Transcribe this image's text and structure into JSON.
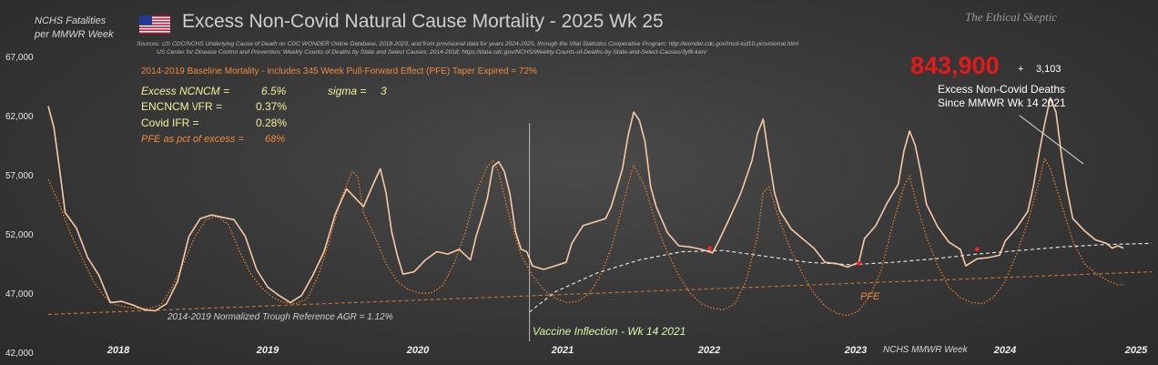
{
  "header": {
    "y_axis_title": [
      "NCHS Fatalities",
      "per MMWR Week"
    ],
    "title": "Excess Non-Covid Natural Cause Mortality - 2025 Wk 25",
    "watermark": "The Ethical Skeptic",
    "flag_icon": "us-flag-icon",
    "sources": [
      "Sources:  US CDC/NCHS Underlying Cause of Death on CDC WONDER Online Database, 2018-2023, and from provisional data for years 2024-2025, through the Vital Statistics Cooperative Program; http://wonder.cdc.gov/mcd-icd10-provisional.html",
      "US Center for Disease Control and Prevention: Weekly Counts of Deaths by State and Select Causes, 2014-2018; https://data.cdc.gov/NCHS/Weekly-Counts-of-Deaths-by-State-and-Select-Causes/3yf8-kanr"
    ]
  },
  "annotations": {
    "baseline_note": "2014-2019 Baseline Mortality - includes 345 Week Pull-Forward Effect (PFE) Taper Expired =   72%",
    "stats": [
      {
        "label": "Excess NCNCM =",
        "value": "6.5%",
        "style": "y"
      },
      {
        "label": "sigma =",
        "value": "3",
        "style": "y"
      },
      {
        "label": "ENCNCM \\/FR =",
        "value": "0.37%",
        "style": "w"
      },
      {
        "label": "Covid IFR =",
        "value": "0.28%",
        "style": "w"
      },
      {
        "label": "PFE as pct of excess =",
        "value": "68%",
        "style": "o"
      }
    ],
    "excess_total": "843,900",
    "plus": "+",
    "excess_added": "3,103",
    "excess_label": [
      "Excess  Non-Covid Deaths",
      "Since MMWR Wk 14 2021"
    ],
    "trough_reference": "2014-2019 Normalized Trough Reference  AGR = 1.12%",
    "vaccine_inflection": "Vaccine Inflection - Wk 14 2021",
    "pfe_label": "PFE",
    "mmwr_week_label": "NCHS MMWR Week"
  },
  "colors": {
    "actual": "#f7c9a7",
    "baseline": "#d87a2c",
    "trough": "#c8783a",
    "trend": "#e0e0e0",
    "marker": "#ff2020"
  },
  "chart_data": {
    "type": "line",
    "ylim": [
      42000,
      67000
    ],
    "yticks": [
      42000,
      47000,
      52000,
      57000,
      62000,
      67000
    ],
    "ytick_labels": [
      "42,000",
      "47,000",
      "52,000",
      "57,000",
      "62,000",
      "67,000"
    ],
    "year_labels": [
      "2018",
      "2019",
      "2020",
      "2021",
      "2022",
      "2023",
      "2024",
      "2025"
    ],
    "x_unit": "week index from 2017 Wk 52",
    "xlim": [
      0,
      392
    ],
    "vaccine_inflection_week": 171,
    "series": [
      {
        "name": "Actual",
        "style": "actual",
        "points": [
          [
            0,
            62800
          ],
          [
            2,
            61000
          ],
          [
            4,
            57500
          ],
          [
            6,
            53800
          ],
          [
            10,
            52500
          ],
          [
            14,
            50000
          ],
          [
            18,
            48500
          ],
          [
            22,
            46200
          ],
          [
            26,
            46300
          ],
          [
            30,
            46000
          ],
          [
            34,
            45600
          ],
          [
            38,
            45500
          ],
          [
            42,
            46100
          ],
          [
            46,
            48000
          ],
          [
            50,
            51800
          ],
          [
            54,
            53300
          ],
          [
            58,
            53600
          ],
          [
            62,
            53400
          ],
          [
            66,
            53200
          ],
          [
            70,
            51800
          ],
          [
            74,
            49000
          ],
          [
            78,
            47500
          ],
          [
            82,
            46800
          ],
          [
            86,
            46200
          ],
          [
            90,
            46800
          ],
          [
            94,
            48500
          ],
          [
            98,
            50500
          ],
          [
            102,
            53700
          ],
          [
            106,
            55800
          ],
          [
            108,
            55300
          ],
          [
            112,
            54300
          ],
          [
            116,
            56500
          ],
          [
            118,
            57500
          ],
          [
            120,
            55500
          ],
          [
            122,
            52200
          ],
          [
            124,
            50200
          ],
          [
            126,
            48600
          ],
          [
            130,
            48800
          ],
          [
            134,
            49800
          ],
          [
            138,
            50500
          ],
          [
            142,
            50300
          ],
          [
            146,
            50700
          ],
          [
            150,
            49800
          ],
          [
            152,
            51800
          ],
          [
            154,
            53300
          ],
          [
            156,
            55000
          ],
          [
            158,
            57700
          ],
          [
            160,
            58100
          ],
          [
            162,
            57300
          ],
          [
            164,
            55400
          ],
          [
            166,
            52200
          ],
          [
            168,
            50700
          ],
          [
            170,
            50500
          ],
          [
            172,
            49300
          ],
          [
            176,
            49000
          ],
          [
            180,
            49300
          ],
          [
            184,
            49600
          ],
          [
            186,
            51200
          ],
          [
            190,
            52700
          ],
          [
            194,
            53000
          ],
          [
            198,
            53300
          ],
          [
            200,
            54300
          ],
          [
            204,
            57500
          ],
          [
            206,
            60300
          ],
          [
            208,
            62300
          ],
          [
            210,
            61600
          ],
          [
            212,
            59800
          ],
          [
            214,
            56000
          ],
          [
            216,
            54300
          ],
          [
            220,
            52100
          ],
          [
            224,
            51000
          ],
          [
            228,
            50900
          ],
          [
            232,
            50700
          ],
          [
            236,
            50400
          ],
          [
            238,
            51300
          ],
          [
            242,
            53300
          ],
          [
            246,
            55400
          ],
          [
            250,
            58200
          ],
          [
            252,
            60500
          ],
          [
            254,
            61700
          ],
          [
            256,
            58500
          ],
          [
            258,
            55500
          ],
          [
            260,
            53900
          ],
          [
            264,
            52400
          ],
          [
            268,
            51600
          ],
          [
            272,
            50800
          ],
          [
            276,
            49600
          ],
          [
            280,
            49500
          ],
          [
            284,
            49200
          ],
          [
            288,
            49600
          ],
          [
            290,
            51600
          ],
          [
            294,
            52700
          ],
          [
            298,
            54600
          ],
          [
            302,
            56200
          ],
          [
            304,
            59000
          ],
          [
            306,
            60700
          ],
          [
            308,
            59500
          ],
          [
            310,
            57200
          ],
          [
            312,
            54500
          ],
          [
            316,
            52600
          ],
          [
            320,
            51300
          ],
          [
            324,
            50700
          ],
          [
            326,
            49300
          ],
          [
            330,
            49900
          ],
          [
            334,
            50000
          ],
          [
            338,
            50200
          ],
          [
            340,
            51400
          ],
          [
            344,
            52500
          ],
          [
            348,
            53900
          ],
          [
            350,
            56000
          ],
          [
            352,
            58800
          ],
          [
            354,
            61300
          ],
          [
            356,
            63500
          ],
          [
            358,
            62300
          ],
          [
            360,
            58600
          ],
          [
            362,
            55700
          ],
          [
            364,
            53300
          ],
          [
            368,
            52300
          ],
          [
            372,
            51500
          ],
          [
            376,
            51200
          ],
          [
            378,
            50800
          ],
          [
            380,
            51000
          ],
          [
            382,
            50800
          ]
        ]
      },
      {
        "name": "Baseline",
        "style": "baseline",
        "points": [
          [
            0,
            56600
          ],
          [
            4,
            54500
          ],
          [
            8,
            52000
          ],
          [
            12,
            50000
          ],
          [
            16,
            48000
          ],
          [
            20,
            46700
          ],
          [
            24,
            46000
          ],
          [
            28,
            45800
          ],
          [
            32,
            45700
          ],
          [
            36,
            45700
          ],
          [
            40,
            46000
          ],
          [
            44,
            47500
          ],
          [
            48,
            49500
          ],
          [
            52,
            51700
          ],
          [
            56,
            53200
          ],
          [
            60,
            53500
          ],
          [
            64,
            52800
          ],
          [
            68,
            50500
          ],
          [
            72,
            48600
          ],
          [
            76,
            47400
          ],
          [
            80,
            46600
          ],
          [
            84,
            46200
          ],
          [
            88,
            46100
          ],
          [
            92,
            46500
          ],
          [
            96,
            48500
          ],
          [
            100,
            51500
          ],
          [
            104,
            55000
          ],
          [
            108,
            57300
          ],
          [
            110,
            56800
          ],
          [
            112,
            53800
          ],
          [
            116,
            51800
          ],
          [
            120,
            49500
          ],
          [
            124,
            48000
          ],
          [
            128,
            47300
          ],
          [
            132,
            47000
          ],
          [
            136,
            47000
          ],
          [
            140,
            47600
          ],
          [
            144,
            49400
          ],
          [
            148,
            52000
          ],
          [
            152,
            55500
          ],
          [
            156,
            57700
          ],
          [
            158,
            58200
          ],
          [
            160,
            57200
          ],
          [
            164,
            53300
          ],
          [
            168,
            50200
          ],
          [
            172,
            48500
          ],
          [
            176,
            47300
          ],
          [
            180,
            46600
          ],
          [
            184,
            46200
          ],
          [
            188,
            46300
          ],
          [
            192,
            46900
          ],
          [
            196,
            48400
          ],
          [
            200,
            50800
          ],
          [
            204,
            54300
          ],
          [
            206,
            56200
          ],
          [
            208,
            57800
          ],
          [
            212,
            56000
          ],
          [
            216,
            52800
          ],
          [
            220,
            50400
          ],
          [
            224,
            48500
          ],
          [
            228,
            47000
          ],
          [
            232,
            46100
          ],
          [
            236,
            45700
          ],
          [
            240,
            45600
          ],
          [
            244,
            46100
          ],
          [
            248,
            48100
          ],
          [
            252,
            51800
          ],
          [
            254,
            55500
          ],
          [
            256,
            56000
          ],
          [
            260,
            53000
          ],
          [
            264,
            50500
          ],
          [
            268,
            48600
          ],
          [
            272,
            47000
          ],
          [
            276,
            45900
          ],
          [
            280,
            45300
          ],
          [
            284,
            45100
          ],
          [
            288,
            45500
          ],
          [
            292,
            46800
          ],
          [
            296,
            49000
          ],
          [
            300,
            52800
          ],
          [
            304,
            56000
          ],
          [
            306,
            56900
          ],
          [
            308,
            55000
          ],
          [
            312,
            51700
          ],
          [
            316,
            49300
          ],
          [
            320,
            47500
          ],
          [
            324,
            46600
          ],
          [
            328,
            46200
          ],
          [
            332,
            46100
          ],
          [
            336,
            46700
          ],
          [
            340,
            48000
          ],
          [
            344,
            50300
          ],
          [
            348,
            53000
          ],
          [
            352,
            56400
          ],
          [
            354,
            58400
          ],
          [
            356,
            57500
          ],
          [
            360,
            54500
          ],
          [
            364,
            51400
          ],
          [
            368,
            49500
          ],
          [
            372,
            48700
          ],
          [
            376,
            48100
          ],
          [
            380,
            47700
          ],
          [
            382,
            47700
          ]
        ]
      },
      {
        "name": "Trough reference",
        "style": "trough",
        "points": [
          [
            0,
            45200
          ],
          [
            392,
            48800
          ]
        ]
      },
      {
        "name": "Trend",
        "style": "trend",
        "points": [
          [
            171,
            45400
          ],
          [
            180,
            47100
          ],
          [
            195,
            48700
          ],
          [
            210,
            49800
          ],
          [
            225,
            50500
          ],
          [
            240,
            50600
          ],
          [
            255,
            50100
          ],
          [
            270,
            49600
          ],
          [
            285,
            49400
          ],
          [
            300,
            49600
          ],
          [
            315,
            49900
          ],
          [
            330,
            50300
          ],
          [
            345,
            50600
          ],
          [
            360,
            50900
          ],
          [
            375,
            51100
          ],
          [
            392,
            51200
          ]
        ]
      }
    ],
    "markers": [
      [
        235,
        50800
      ],
      [
        288,
        49500
      ],
      [
        330,
        50700
      ]
    ]
  }
}
